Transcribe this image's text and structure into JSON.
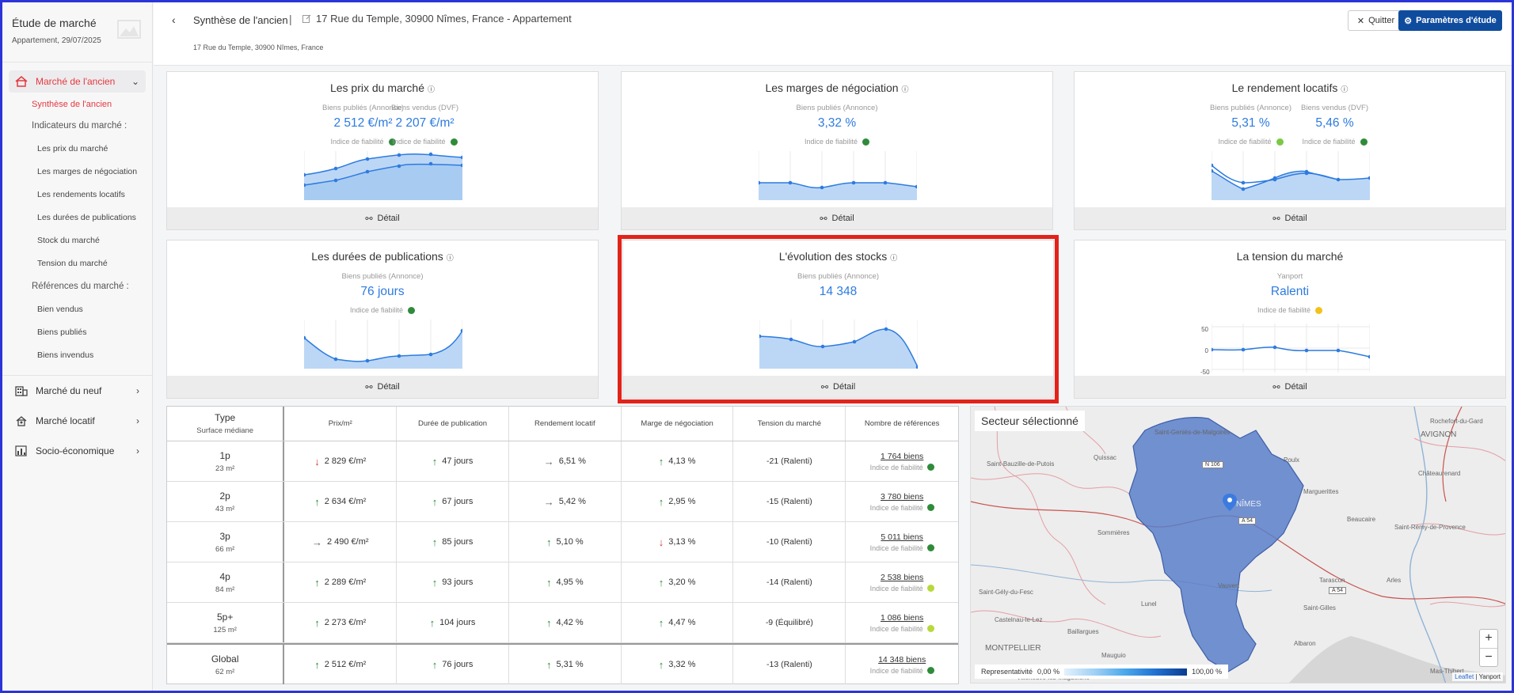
{
  "sidebar": {
    "title": "Étude de marché",
    "subtitle": "Appartement, 29/07/2025",
    "section_ancien": "Marché de l'ancien",
    "links": {
      "synthese": "Synthèse de l'ancien",
      "indicateurs": "Indicateurs du marché :",
      "prix": "Les prix du marché",
      "marges": "Les marges de négociation",
      "rendements": "Les rendements locatifs",
      "durees": "Les durées de publications",
      "stock": "Stock du marché",
      "tension": "Tension du marché",
      "references": "Références du marché :",
      "vendus": "Bien vendus",
      "publies": "Biens publiés",
      "invendus": "Biens invendus"
    },
    "section_neuf": "Marché du neuf",
    "section_locatif": "Marché locatif",
    "section_socio": "Socio-économique"
  },
  "topbar": {
    "title": "Synthèse de l'ancien",
    "pipe": "|",
    "address": "17 Rue du Temple, 30900 Nîmes, France - Appartement",
    "address_small": "17 Rue du Temple, 30900 Nîmes, France",
    "quit": "Quitter",
    "params": "Paramètres d'étude"
  },
  "cards": {
    "detail": "Détail",
    "reliability": "Indice de fiabilité",
    "prix": {
      "title": "Les prix du marché",
      "lbl1": "Biens publiés (Annonce)",
      "val1": "2 512 €/m²",
      "lbl2": "Biens vendus (DVF)",
      "val2": "2 207 €/m²"
    },
    "marges": {
      "title": "Les marges de négociation",
      "lbl1": "Biens publiés (Annonce)",
      "val1": "3,32 %"
    },
    "rendement": {
      "title": "Le rendement locatifs",
      "lbl1": "Biens publiés (Annonce)",
      "val1": "5,31 %",
      "lbl2": "Biens vendus (DVF)",
      "val2": "5,46 %"
    },
    "durees": {
      "title": "Les durées de publications",
      "lbl1": "Biens publiés (Annonce)",
      "val1": "76 jours"
    },
    "stocks": {
      "title": "L'évolution des stocks",
      "lbl1": "Biens publiés (Annonce)",
      "val1": "14 348"
    },
    "tension": {
      "title": "La tension du marché",
      "lbl1": "Yanport",
      "val1": "Ralenti",
      "yticks": [
        "50",
        "0",
        "-50"
      ]
    }
  },
  "colors": {
    "green": "#2e8b3a",
    "lightgreen": "#b7d93b",
    "yellow": "#f2c21a",
    "accent": "#2d7be0",
    "red": "#e5383f"
  },
  "table": {
    "headers": {
      "type": "Type",
      "type_sub": "Surface médiane",
      "prix": "Prix/m²",
      "duree": "Durée de publication",
      "rendement": "Rendement locatif",
      "marge": "Marge de négociation",
      "tension": "Tension du marché",
      "refs": "Nombre de références"
    },
    "rows": [
      {
        "type": "1p",
        "surface": "23 m²",
        "prix": "2 829 €/m²",
        "prix_dir": "down",
        "duree": "47 jours",
        "duree_dir": "up",
        "rendement": "6,51 %",
        "rendement_dir": "flat",
        "marge": "4,13 %",
        "marge_dir": "up",
        "tension": "-21 (Ralenti)",
        "refs": "1 764 biens",
        "rel": "green"
      },
      {
        "type": "2p",
        "surface": "43 m²",
        "prix": "2 634 €/m²",
        "prix_dir": "up",
        "duree": "67 jours",
        "duree_dir": "up",
        "rendement": "5,42 %",
        "rendement_dir": "flat",
        "marge": "2,95 %",
        "marge_dir": "up",
        "tension": "-15 (Ralenti)",
        "refs": "3 780 biens",
        "rel": "green"
      },
      {
        "type": "3p",
        "surface": "66 m²",
        "prix": "2 490 €/m²",
        "prix_dir": "flat",
        "duree": "85 jours",
        "duree_dir": "up",
        "rendement": "5,10 %",
        "rendement_dir": "up",
        "marge": "3,13 %",
        "marge_dir": "down",
        "tension": "-10 (Ralenti)",
        "refs": "5 011 biens",
        "rel": "green"
      },
      {
        "type": "4p",
        "surface": "84 m²",
        "prix": "2 289 €/m²",
        "prix_dir": "up",
        "duree": "93 jours",
        "duree_dir": "up",
        "rendement": "4,95 %",
        "rendement_dir": "up",
        "marge": "3,20 %",
        "marge_dir": "up",
        "tension": "-14 (Ralenti)",
        "refs": "2 538 biens",
        "rel": "lightgreen"
      },
      {
        "type": "5p+",
        "surface": "125 m²",
        "prix": "2 273 €/m²",
        "prix_dir": "up",
        "duree": "104 jours",
        "duree_dir": "up",
        "rendement": "4,42 %",
        "rendement_dir": "up",
        "marge": "4,47 %",
        "marge_dir": "up",
        "tension": "-9 (Équilibré)",
        "refs": "1 086 biens",
        "rel": "lightgreen"
      },
      {
        "type": "Global",
        "surface": "62 m²",
        "prix": "2 512 €/m²",
        "prix_dir": "up",
        "duree": "76 jours",
        "duree_dir": "up",
        "rendement": "5,31 %",
        "rendement_dir": "up",
        "marge": "3,32 %",
        "marge_dir": "up",
        "tension": "-13 (Ralenti)",
        "refs": "14 348 biens",
        "rel": "green"
      }
    ]
  },
  "map": {
    "title": "Secteur sélectionné",
    "legend_label": "Representativité",
    "legend_min": "0,00 %",
    "legend_max": "100,00 %",
    "zoom_in": "+",
    "zoom_out": "−",
    "attrib_leaflet": "Leaflet",
    "attrib_sep": "|",
    "attrib_yanport": "Yanport",
    "places": [
      "Saint-Geniès-de-Malgoirès",
      "Quissac",
      "Saint-Bauzille-de-Putois",
      "Sommières",
      "NÎMES",
      "Marguerittes",
      "Poulx",
      "Beaucaire",
      "Saint-Rémy-de-Provence",
      "Arles",
      "Vauvert",
      "Lunel",
      "Saint-Gély-du-Fesc",
      "Castelnau-le-Lez",
      "Baillargues",
      "MONTPELLIER",
      "Mauguio",
      "Saint-Gilles",
      "Albaron",
      "Mas-Thibert",
      "Rochefort-du-Gard",
      "AVIGNON",
      "Châteaurenard",
      "Tarascon",
      "Villeneuve-lès-Maguelone"
    ],
    "roads": [
      "N 106",
      "A 54",
      "A 54"
    ]
  }
}
